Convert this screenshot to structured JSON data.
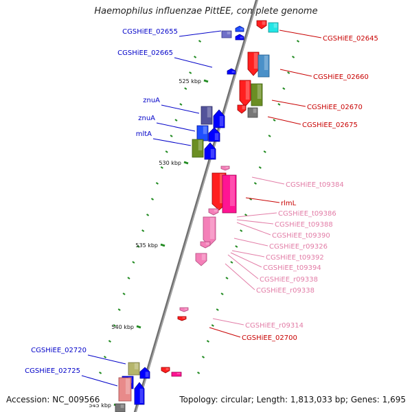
{
  "title": "Haemophilus influenzae PittEE, complete genome",
  "accession": "Accession: NC_009566",
  "summary": "Topology: circular; Length: 1,813,033 bp; Genes: 1,695",
  "colors": {
    "backbone": "#888888",
    "tick": "#228B22",
    "label_blue": "#0000C8",
    "label_red": "#C80000",
    "label_pink": "#E27CA6"
  },
  "scale_ticks": [
    "525 kbp",
    "530 kbp",
    "535 kbp",
    "540 kbp",
    "545 kbp"
  ],
  "left_labels": [
    "CGSHiEE_02655",
    "CGSHiEE_02665",
    "znuA",
    "znuA",
    "mltA",
    "CGSHiEE_02720",
    "CGSHiEE_02725"
  ],
  "right_labels": [
    {
      "text": "CGSHiEE_02645",
      "color": "red"
    },
    {
      "text": "CGSHiEE_02660",
      "color": "red"
    },
    {
      "text": "CGSHiEE_02670",
      "color": "red"
    },
    {
      "text": "CGSHiEE_02675",
      "color": "red"
    },
    {
      "text": "CGSHiEE_t09384",
      "color": "pink"
    },
    {
      "text": "rlmL",
      "color": "red"
    },
    {
      "text": "CGSHiEE_t09386",
      "color": "pink"
    },
    {
      "text": "CGSHiEE_t09388",
      "color": "pink"
    },
    {
      "text": "CGSHiEE_t09390",
      "color": "pink"
    },
    {
      "text": "CGSHiEE_r09326",
      "color": "pink"
    },
    {
      "text": "CGSHiEE_t09392",
      "color": "pink"
    },
    {
      "text": "CGSHiEE_t09394",
      "color": "pink"
    },
    {
      "text": "CGSHiEE_r09338",
      "color": "pink"
    },
    {
      "text": "CGSHiEE_r09338",
      "color": "pink"
    },
    {
      "text": "CGSHiEE_r09314",
      "color": "pink"
    },
    {
      "text": "CGSHiEE_02700",
      "color": "red"
    }
  ]
}
